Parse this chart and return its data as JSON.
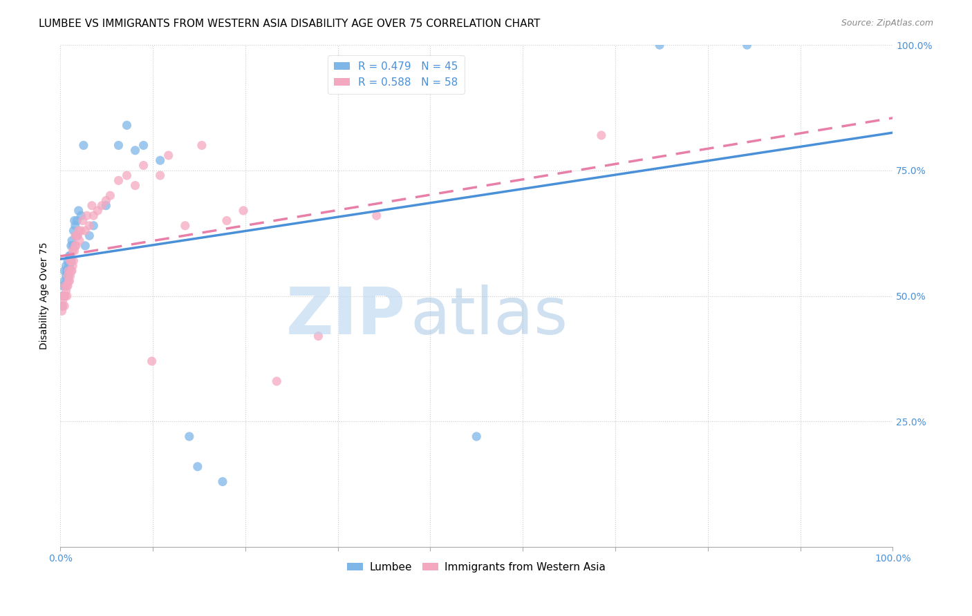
{
  "title": "LUMBEE VS IMMIGRANTS FROM WESTERN ASIA DISABILITY AGE OVER 75 CORRELATION CHART",
  "source": "Source: ZipAtlas.com",
  "ylabel": "Disability Age Over 75",
  "legend_label1": "Lumbee",
  "legend_label2": "Immigrants from Western Asia",
  "R1": 0.479,
  "N1": 45,
  "R2": 0.588,
  "N2": 58,
  "color1": "#7EB6E8",
  "color2": "#F4A8C0",
  "line_color1": "#4A90D9",
  "line_color2": "#E87FA8",
  "lumbee_x": [
    0.002,
    0.003,
    0.003,
    0.004,
    0.005,
    0.005,
    0.006,
    0.007,
    0.007,
    0.008,
    0.008,
    0.009,
    0.009,
    0.01,
    0.01,
    0.011,
    0.011,
    0.012,
    0.013,
    0.013,
    0.014,
    0.015,
    0.016,
    0.017,
    0.018,
    0.019,
    0.02,
    0.022,
    0.025,
    0.028,
    0.03,
    0.035,
    0.04,
    0.055,
    0.07,
    0.08,
    0.09,
    0.1,
    0.12,
    0.155,
    0.165,
    0.195,
    0.5,
    0.72,
    0.825
  ],
  "lumbee_y": [
    0.48,
    0.5,
    0.52,
    0.5,
    0.53,
    0.55,
    0.52,
    0.56,
    0.54,
    0.53,
    0.55,
    0.57,
    0.55,
    0.54,
    0.56,
    0.56,
    0.58,
    0.58,
    0.57,
    0.6,
    0.61,
    0.6,
    0.63,
    0.65,
    0.64,
    0.62,
    0.65,
    0.67,
    0.66,
    0.8,
    0.6,
    0.62,
    0.64,
    0.68,
    0.8,
    0.84,
    0.79,
    0.8,
    0.77,
    0.22,
    0.16,
    0.13,
    0.22,
    1.0,
    1.0
  ],
  "immigrants_x": [
    0.002,
    0.003,
    0.003,
    0.004,
    0.005,
    0.005,
    0.006,
    0.006,
    0.007,
    0.008,
    0.008,
    0.009,
    0.009,
    0.01,
    0.01,
    0.011,
    0.012,
    0.012,
    0.013,
    0.013,
    0.014,
    0.015,
    0.015,
    0.016,
    0.017,
    0.018,
    0.018,
    0.019,
    0.02,
    0.021,
    0.022,
    0.023,
    0.025,
    0.027,
    0.03,
    0.032,
    0.035,
    0.038,
    0.04,
    0.045,
    0.05,
    0.055,
    0.06,
    0.07,
    0.08,
    0.09,
    0.1,
    0.11,
    0.12,
    0.13,
    0.15,
    0.17,
    0.2,
    0.22,
    0.26,
    0.31,
    0.38,
    0.65
  ],
  "immigrants_y": [
    0.47,
    0.48,
    0.49,
    0.5,
    0.48,
    0.5,
    0.52,
    0.5,
    0.51,
    0.52,
    0.5,
    0.52,
    0.54,
    0.53,
    0.55,
    0.53,
    0.54,
    0.57,
    0.55,
    0.57,
    0.55,
    0.56,
    0.59,
    0.57,
    0.59,
    0.6,
    0.62,
    0.6,
    0.62,
    0.62,
    0.63,
    0.61,
    0.63,
    0.65,
    0.63,
    0.66,
    0.64,
    0.68,
    0.66,
    0.67,
    0.68,
    0.69,
    0.7,
    0.73,
    0.74,
    0.72,
    0.76,
    0.37,
    0.74,
    0.78,
    0.64,
    0.8,
    0.65,
    0.67,
    0.33,
    0.42,
    0.66,
    0.82
  ],
  "xlim": [
    0.0,
    1.0
  ],
  "ylim": [
    0.0,
    1.0
  ],
  "title_fontsize": 11,
  "source_fontsize": 9,
  "axis_label_fontsize": 10,
  "legend_fontsize": 11,
  "tick_fontsize": 10,
  "right_tick_color": "#4A90D9",
  "x_tick_color": "#4A90D9"
}
